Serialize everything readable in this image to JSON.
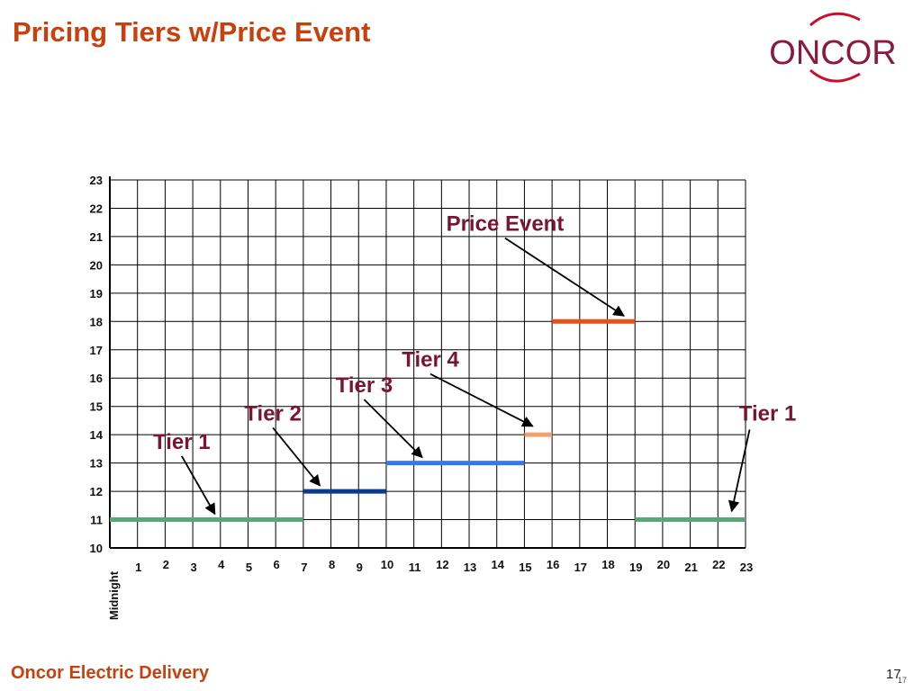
{
  "slide": {
    "title": "Pricing Tiers w/Price Event",
    "footer": "Oncor Electric Delivery",
    "page_number": "17",
    "page_number_small": "17"
  },
  "logo": {
    "text": "ONCOR",
    "color": "#8b1a3c",
    "accent": "#c8102e"
  },
  "colors": {
    "title": "#c8400c",
    "annotation": "#7a1530",
    "tier1": "#5aa87a",
    "tier2": "#0a3a8c",
    "tier3": "#3a78e8",
    "tier4": "#f2a070",
    "price_event": "#e8501a",
    "highlight_tick": "#8b1a3c"
  },
  "chart_data": {
    "type": "line",
    "x_label": "Midnight",
    "x_ticks": [
      "1",
      "2",
      "3",
      "4",
      "5",
      "6",
      "7",
      "8",
      "9",
      "10",
      "11",
      "12",
      "13",
      "14",
      "15",
      "16",
      "17",
      "18",
      "19",
      "20",
      "21",
      "22",
      "23"
    ],
    "x_highlight": "4",
    "xlim": [
      0,
      23
    ],
    "ylim": [
      10,
      23
    ],
    "y_ticks": [
      "10",
      "11",
      "12",
      "13",
      "14",
      "15",
      "16",
      "17",
      "18",
      "19",
      "20",
      "21",
      "22",
      "23"
    ],
    "grid": true,
    "series": [
      {
        "name": "Tier 1",
        "color": "#5aa87a",
        "x": [
          0,
          7
        ],
        "y": [
          11,
          11
        ]
      },
      {
        "name": "Tier 2",
        "color": "#0a3a8c",
        "x": [
          7,
          10
        ],
        "y": [
          12,
          12
        ]
      },
      {
        "name": "Tier 3",
        "color": "#3a78e8",
        "x": [
          10,
          15
        ],
        "y": [
          13,
          13
        ]
      },
      {
        "name": "Tier 4",
        "color": "#f2a070",
        "x": [
          15,
          16
        ],
        "y": [
          14,
          14
        ]
      },
      {
        "name": "Price Event",
        "color": "#e8501a",
        "x": [
          16,
          19
        ],
        "y": [
          18,
          18
        ]
      },
      {
        "name": "Tier 1",
        "color": "#5aa87a",
        "x": [
          19,
          23
        ],
        "y": [
          11,
          11
        ]
      }
    ],
    "annotations": [
      {
        "text": "Tier 1",
        "x": 2.6,
        "y": 13.5,
        "arrow_to": [
          3.8,
          11.2
        ]
      },
      {
        "text": "Tier 2",
        "x": 5.9,
        "y": 14.5,
        "arrow_to": [
          7.6,
          12.2
        ]
      },
      {
        "text": "Tier 3",
        "x": 9.2,
        "y": 15.5,
        "arrow_to": [
          11.3,
          13.2
        ]
      },
      {
        "text": "Tier 4",
        "x": 11.6,
        "y": 16.4,
        "arrow_to": [
          15.3,
          14.3
        ]
      },
      {
        "text": "Price Event",
        "x": 14.3,
        "y": 21.2,
        "arrow_to": [
          18.6,
          18.2
        ]
      },
      {
        "text": "Tier 1",
        "x": 23.8,
        "y": 14.5,
        "arrow_to": [
          22.5,
          11.3
        ]
      }
    ]
  }
}
